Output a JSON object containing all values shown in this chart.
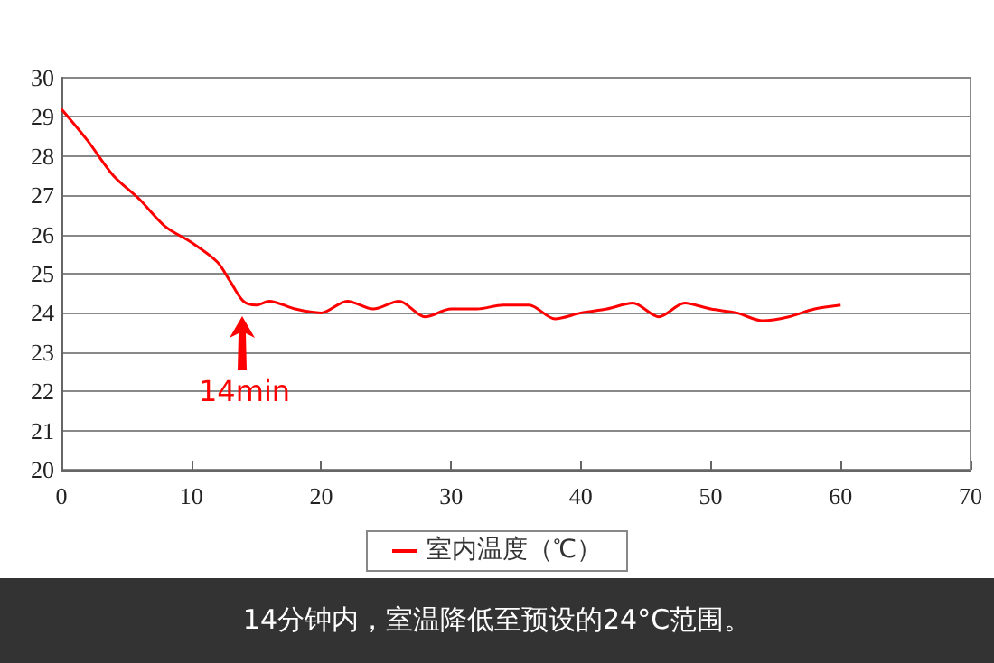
{
  "chart_data": {
    "type": "line",
    "x": [
      0,
      2,
      4,
      6,
      8,
      10,
      12,
      13,
      14,
      15,
      16,
      18,
      20,
      22,
      24,
      26,
      28,
      30,
      32,
      34,
      36,
      38,
      40,
      42,
      44,
      46,
      48,
      50,
      52,
      54,
      56,
      58,
      60
    ],
    "series": [
      {
        "name": "室内温度（℃）",
        "color": "#ff0000",
        "values": [
          29.2,
          28.4,
          27.5,
          26.9,
          26.2,
          25.8,
          25.3,
          24.8,
          24.3,
          24.2,
          24.3,
          24.1,
          24.0,
          24.3,
          24.1,
          24.3,
          23.9,
          24.1,
          24.1,
          24.2,
          24.2,
          23.85,
          24.0,
          24.1,
          24.25,
          23.9,
          24.25,
          24.1,
          24.0,
          23.8,
          23.9,
          24.1,
          24.2
        ]
      }
    ],
    "xlim": [
      0,
      70
    ],
    "xticks": [
      0,
      10,
      20,
      30,
      40,
      50,
      60,
      70
    ],
    "ylim": [
      20,
      30
    ],
    "yticks": [
      20,
      21,
      22,
      23,
      24,
      25,
      26,
      27,
      28,
      29,
      30
    ],
    "grid": "y",
    "legend": "bottom",
    "marker": "none",
    "line_style": "solid",
    "annotations": [
      "14min",
      "14分钟内，室温降低至预设的24°C范围。"
    ]
  }
}
